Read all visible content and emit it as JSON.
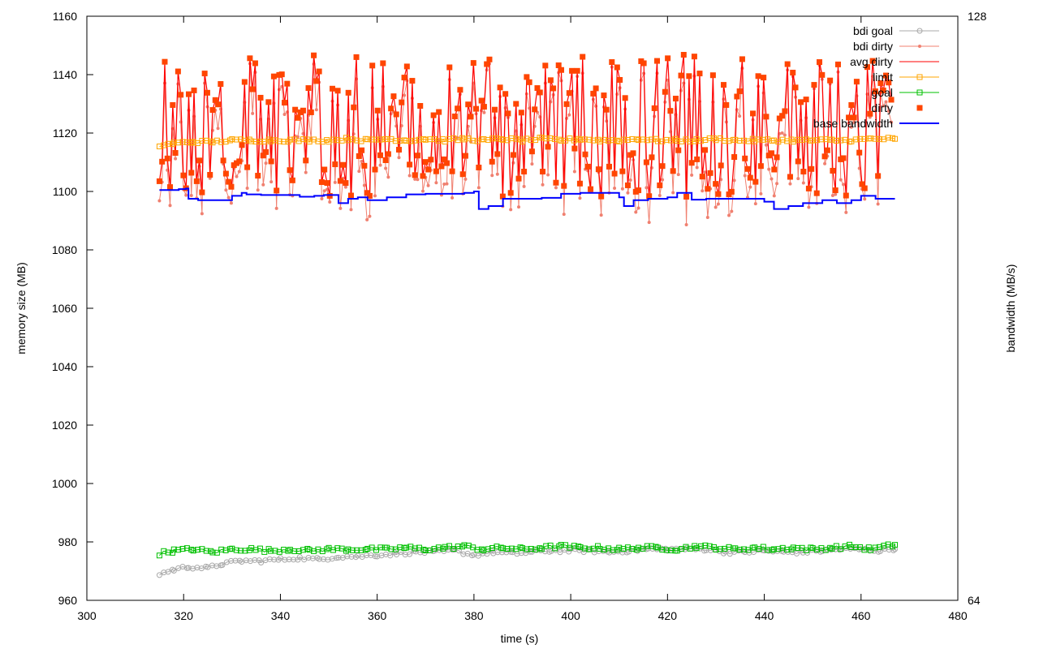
{
  "chart_data": {
    "type": "line",
    "title": "",
    "xlabel": "time (s)",
    "ylabel": "memory size (MB)",
    "y2label": "bandwidth (MB/s)",
    "xlim": [
      300,
      480
    ],
    "ylim": [
      960,
      1160
    ],
    "y2lim": [
      64,
      128
    ],
    "x_ticks": [
      300,
      320,
      340,
      360,
      380,
      400,
      420,
      440,
      460,
      480
    ],
    "y_ticks": [
      960,
      980,
      1000,
      1020,
      1040,
      1060,
      1080,
      1100,
      1120,
      1140,
      1160
    ],
    "y2_ticks": [
      64,
      128
    ],
    "grid": false,
    "legend_position": "top-right",
    "colors": {
      "bdi_goal": "#a8a8a8",
      "bdi_dirty": "#f08070",
      "avg_dirty": "#ff0000",
      "limit": "#ffa500",
      "goal": "#00c000",
      "dirty": "#ff4500",
      "base_bandwidth": "#0000ff"
    },
    "series": [
      {
        "name": "bdi goal",
        "key": "bdi_goal",
        "style": "line-circle",
        "axis": "y",
        "x": [
          315,
          318,
          321,
          325,
          328,
          332,
          336,
          340,
          344,
          348,
          352,
          356,
          360,
          364,
          368,
          372,
          376,
          380,
          384,
          388,
          392,
          396,
          400,
          404,
          408,
          412,
          416,
          420,
          424,
          428,
          432,
          436,
          440,
          444,
          448,
          452,
          456,
          460,
          464,
          467
        ],
        "values": [
          969,
          970.5,
          971.5,
          971,
          972.5,
          973.5,
          973.5,
          974,
          974.5,
          974,
          975,
          975,
          975.5,
          976,
          976.5,
          976.5,
          977,
          975.5,
          976.5,
          976,
          976.5,
          977,
          977,
          977,
          976.5,
          977,
          977.5,
          977.5,
          977.5,
          977.5,
          976.5,
          976.5,
          977,
          976.5,
          976.5,
          977,
          977.5,
          977.5,
          977,
          977.5
        ]
      },
      {
        "name": "bdi dirty",
        "key": "bdi_dirty",
        "style": "line-dot",
        "axis": "y",
        "x": [],
        "values": []
      },
      {
        "name": "avg dirty",
        "key": "avg_dirty",
        "style": "line",
        "axis": "y",
        "x": [],
        "values": []
      },
      {
        "name": "limit",
        "key": "limit",
        "style": "line-square",
        "axis": "y",
        "x": [
          315,
          318,
          322,
          326,
          330,
          334,
          338,
          342,
          346,
          350,
          354,
          358,
          362,
          366,
          370,
          374,
          378,
          382,
          386,
          390,
          394,
          398,
          402,
          406,
          410,
          414,
          418,
          422,
          426,
          430,
          434,
          438,
          442,
          446,
          450,
          454,
          458,
          462,
          467
        ],
        "values": [
          1115.5,
          1116.5,
          1117,
          1117,
          1117.5,
          1117.5,
          1117.5,
          1117.5,
          1117.5,
          1117.5,
          1118,
          1117.5,
          1118,
          1117.5,
          1118,
          1117.5,
          1118,
          1117.5,
          1118,
          1117.5,
          1118,
          1117.5,
          1118,
          1117.5,
          1117.5,
          1118,
          1117.5,
          1117.5,
          1117.5,
          1118,
          1117.5,
          1117.5,
          1117.5,
          1117.5,
          1117.5,
          1117.5,
          1117.5,
          1118,
          1118
        ]
      },
      {
        "name": "goal",
        "key": "goal",
        "style": "line-square",
        "axis": "y",
        "x": [
          315,
          318,
          322,
          326,
          330,
          334,
          338,
          342,
          346,
          350,
          354,
          358,
          362,
          366,
          370,
          374,
          378,
          382,
          386,
          390,
          394,
          398,
          402,
          406,
          410,
          414,
          418,
          422,
          426,
          430,
          434,
          438,
          442,
          446,
          450,
          454,
          458,
          462,
          467
        ],
        "values": [
          976,
          977,
          977.5,
          976.5,
          977.5,
          977.5,
          977,
          977.5,
          977,
          977.5,
          977.5,
          977.5,
          977.5,
          978,
          977.5,
          978,
          978.5,
          977.5,
          978,
          977.5,
          978,
          978.5,
          978,
          978,
          977.5,
          978,
          978,
          977.5,
          978.5,
          978,
          977.5,
          978,
          977.5,
          978,
          977.5,
          978,
          978.5,
          977.5,
          979
        ]
      },
      {
        "name": "dirty",
        "key": "dirty",
        "style": "square-points",
        "axis": "y",
        "x": [],
        "values": []
      },
      {
        "name": "base bandwidth",
        "key": "base_bandwidth",
        "style": "step-line",
        "axis": "y",
        "x": [
          315,
          317,
          319,
          320.5,
          321,
          323,
          326,
          330,
          332,
          333,
          336,
          340,
          344,
          347,
          349,
          352,
          354,
          356,
          358,
          362,
          366,
          370,
          374,
          378,
          380,
          381,
          383,
          386,
          390,
          394,
          398,
          402,
          406,
          408,
          410,
          411,
          413,
          416,
          420,
          422,
          425,
          428,
          432,
          436,
          440,
          442,
          445,
          448,
          452,
          455,
          458,
          460,
          463,
          467
        ],
        "values": [
          1100.5,
          1100.5,
          1100.8,
          1101,
          1097.5,
          1097,
          1097,
          1098.5,
          1099.5,
          1099,
          1098.8,
          1098.8,
          1098.2,
          1098.5,
          1098.8,
          1096,
          1097.5,
          1098,
          1097,
          1098,
          1099,
          1099.2,
          1099.2,
          1099.5,
          1100,
          1094,
          1095,
          1097.5,
          1097.5,
          1097.8,
          1099.2,
          1099.5,
          1099.5,
          1099.5,
          1098,
          1095,
          1097,
          1097.5,
          1098,
          1099.5,
          1097.2,
          1097.5,
          1097.5,
          1097.5,
          1096.5,
          1094,
          1095,
          1096,
          1097,
          1096,
          1097,
          1098.5,
          1097.5,
          1097.5
        ]
      }
    ]
  }
}
